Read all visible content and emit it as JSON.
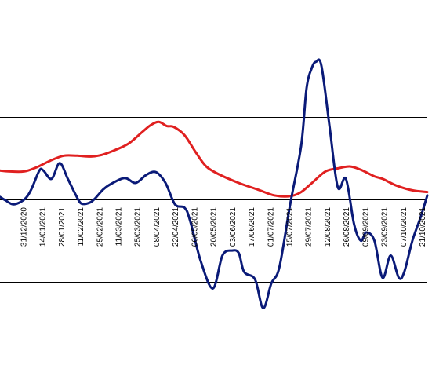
{
  "chart_data": {
    "type": "line",
    "title": "",
    "xlabel": "",
    "ylabel": "",
    "grid": true,
    "ylim": [
      -1.5,
      2.5
    ],
    "y_gridlines": [
      -1,
      0,
      1,
      2
    ],
    "x_range": [
      "2020-12-14",
      "2021-10-25"
    ],
    "x_ticks": [
      "31/12/2020",
      "14/01/2021",
      "28/01/2021",
      "11/02/2021",
      "25/02/2021",
      "11/03/2021",
      "25/03/2021",
      "08/04/2021",
      "22/04/2021",
      "06/05/2021",
      "20/05/2021",
      "03/06/2021",
      "17/06/2021",
      "01/07/2021",
      "15/07/2021",
      "29/07/2021",
      "12/08/2021",
      "26/08/2021",
      "09/09/2021",
      "23/09/2021",
      "07/10/2021",
      "21/10/2021"
    ],
    "colors": {
      "red": "#e02020",
      "blue": "#0a1a78"
    },
    "series": [
      {
        "color": "red",
        "points": [
          [
            "2020-12-14",
            0.35
          ],
          [
            "2020-12-20",
            0.34
          ],
          [
            "2021-01-01",
            0.34
          ],
          [
            "2021-01-10",
            0.39
          ],
          [
            "2021-01-20",
            0.47
          ],
          [
            "2021-01-30",
            0.53
          ],
          [
            "2021-02-09",
            0.53
          ],
          [
            "2021-02-19",
            0.52
          ],
          [
            "2021-02-27",
            0.54
          ],
          [
            "2021-03-09",
            0.6
          ],
          [
            "2021-03-19",
            0.68
          ],
          [
            "2021-03-29",
            0.82
          ],
          [
            "2021-04-04",
            0.9
          ],
          [
            "2021-04-10",
            0.94
          ],
          [
            "2021-04-16",
            0.89
          ],
          [
            "2021-04-21",
            0.88
          ],
          [
            "2021-04-29",
            0.78
          ],
          [
            "2021-05-07",
            0.58
          ],
          [
            "2021-05-15",
            0.4
          ],
          [
            "2021-05-25",
            0.3
          ],
          [
            "2021-06-08",
            0.2
          ],
          [
            "2021-06-22",
            0.12
          ],
          [
            "2021-07-04",
            0.05
          ],
          [
            "2021-07-16",
            0.04
          ],
          [
            "2021-07-24",
            0.09
          ],
          [
            "2021-08-01",
            0.2
          ],
          [
            "2021-08-11",
            0.34
          ],
          [
            "2021-08-21",
            0.38
          ],
          [
            "2021-08-29",
            0.4
          ],
          [
            "2021-09-06",
            0.36
          ],
          [
            "2021-09-16",
            0.28
          ],
          [
            "2021-09-22",
            0.25
          ],
          [
            "2021-10-02",
            0.17
          ],
          [
            "2021-10-14",
            0.11
          ],
          [
            "2021-10-25",
            0.09
          ]
        ]
      },
      {
        "color": "blue",
        "points": [
          [
            "2020-12-14",
            0.03
          ],
          [
            "2020-12-18",
            -0.01
          ],
          [
            "2020-12-24",
            -0.06
          ],
          [
            "2021-01-01",
            0.0
          ],
          [
            "2021-01-06",
            0.12
          ],
          [
            "2021-01-12",
            0.35
          ],
          [
            "2021-01-15",
            0.35
          ],
          [
            "2021-01-21",
            0.25
          ],
          [
            "2021-01-27",
            0.44
          ],
          [
            "2021-02-02",
            0.25
          ],
          [
            "2021-02-08",
            0.05
          ],
          [
            "2021-02-12",
            -0.05
          ],
          [
            "2021-02-18",
            -0.04
          ],
          [
            "2021-02-22",
            0.01
          ],
          [
            "2021-02-28",
            0.12
          ],
          [
            "2021-03-06",
            0.19
          ],
          [
            "2021-03-16",
            0.26
          ],
          [
            "2021-03-24",
            0.2
          ],
          [
            "2021-04-01",
            0.3
          ],
          [
            "2021-04-08",
            0.33
          ],
          [
            "2021-04-15",
            0.2
          ],
          [
            "2021-04-22",
            -0.06
          ],
          [
            "2021-04-29",
            -0.1
          ],
          [
            "2021-05-03",
            -0.25
          ],
          [
            "2021-05-11",
            -0.75
          ],
          [
            "2021-05-20",
            -1.08
          ],
          [
            "2021-05-27",
            -0.68
          ],
          [
            "2021-06-03",
            -0.62
          ],
          [
            "2021-06-08",
            -0.65
          ],
          [
            "2021-06-12",
            -0.88
          ],
          [
            "2021-06-20",
            -0.97
          ],
          [
            "2021-06-26",
            -1.32
          ],
          [
            "2021-07-02",
            -1.02
          ],
          [
            "2021-07-08",
            -0.82
          ],
          [
            "2021-07-16",
            -0.05
          ],
          [
            "2021-07-24",
            0.65
          ],
          [
            "2021-07-28",
            1.35
          ],
          [
            "2021-08-01",
            1.6
          ],
          [
            "2021-08-04",
            1.67
          ],
          [
            "2021-08-08",
            1.62
          ],
          [
            "2021-08-14",
            0.88
          ],
          [
            "2021-08-20",
            0.15
          ],
          [
            "2021-08-26",
            0.25
          ],
          [
            "2021-09-01",
            -0.3
          ],
          [
            "2021-09-06",
            -0.5
          ],
          [
            "2021-09-10",
            -0.4
          ],
          [
            "2021-09-16",
            -0.5
          ],
          [
            "2021-09-22",
            -0.95
          ],
          [
            "2021-09-28",
            -0.68
          ],
          [
            "2021-10-04",
            -0.95
          ],
          [
            "2021-10-08",
            -0.88
          ],
          [
            "2021-10-14",
            -0.5
          ],
          [
            "2021-10-20",
            -0.22
          ],
          [
            "2021-10-25",
            0.05
          ]
        ]
      }
    ]
  }
}
